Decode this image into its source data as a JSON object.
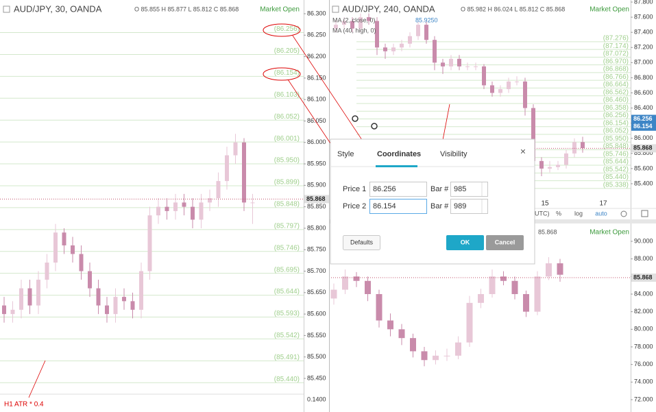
{
  "left_chart": {
    "symbol": "AUD/JPY, 30, OANDA",
    "ohlc": "O 85.855  H 85.877  L 85.812  C 85.868",
    "status": "Market Open",
    "ylim": [
      85.45,
      86.3
    ],
    "yticks": [
      {
        "value": 86.3,
        "label": "86.300"
      },
      {
        "value": 86.25,
        "label": "86.250"
      },
      {
        "value": 86.2,
        "label": "86.200"
      },
      {
        "value": 86.15,
        "label": "86.150"
      },
      {
        "value": 86.1,
        "label": "86.100"
      },
      {
        "value": 86.05,
        "label": "86.050"
      },
      {
        "value": 86.0,
        "label": "86.000"
      },
      {
        "value": 85.95,
        "label": "85.950"
      },
      {
        "value": 85.9,
        "label": "85.900"
      },
      {
        "value": 85.85,
        "label": "85.850"
      },
      {
        "value": 85.8,
        "label": "85.800"
      },
      {
        "value": 85.75,
        "label": "85.750"
      },
      {
        "value": 85.7,
        "label": "85.700"
      },
      {
        "value": 85.65,
        "label": "85.650"
      },
      {
        "value": 85.6,
        "label": "85.600"
      },
      {
        "value": 85.55,
        "label": "85.550"
      },
      {
        "value": 85.5,
        "label": "85.500"
      },
      {
        "value": 85.45,
        "label": "85.450"
      }
    ],
    "levels": [
      {
        "value": 86.256,
        "label": "(86.256)"
      },
      {
        "value": 86.205,
        "label": "(86.205)"
      },
      {
        "value": 86.154,
        "label": "(86.154)"
      },
      {
        "value": 86.103,
        "label": "(86.103)"
      },
      {
        "value": 86.052,
        "label": "(86.052)"
      },
      {
        "value": 86.001,
        "label": "(86.001)"
      },
      {
        "value": 85.95,
        "label": "(85.950)"
      },
      {
        "value": 85.899,
        "label": "(85.899)"
      },
      {
        "value": 85.848,
        "label": "(85.848)"
      },
      {
        "value": 85.797,
        "label": "(85.797)"
      },
      {
        "value": 85.746,
        "label": "(85.746)"
      },
      {
        "value": 85.695,
        "label": "(85.695)"
      },
      {
        "value": 85.644,
        "label": "(85.644)"
      },
      {
        "value": 85.593,
        "label": "(85.593)"
      },
      {
        "value": 85.542,
        "label": "(85.542)"
      },
      {
        "value": 85.491,
        "label": "(85.491)"
      },
      {
        "value": 85.44,
        "label": "(85.440)"
      }
    ],
    "price_labels": [
      {
        "value": 85.868,
        "label": "85.868",
        "color": "#e0e0e0"
      }
    ],
    "indicator": "H1 ATR * 0.4",
    "indicator_tick": "0.1400",
    "candles": [
      [
        85.62,
        85.64,
        85.58,
        85.6
      ],
      [
        85.6,
        85.63,
        85.58,
        85.61
      ],
      [
        85.61,
        85.68,
        85.59,
        85.66
      ],
      [
        85.66,
        85.68,
        85.6,
        85.62
      ],
      [
        85.62,
        85.7,
        85.6,
        85.68
      ],
      [
        85.68,
        85.74,
        85.66,
        85.72
      ],
      [
        85.72,
        85.81,
        85.7,
        85.79
      ],
      [
        85.79,
        85.8,
        85.74,
        85.76
      ],
      [
        85.76,
        85.78,
        85.72,
        85.74
      ],
      [
        85.74,
        85.76,
        85.68,
        85.7
      ],
      [
        85.7,
        85.72,
        85.64,
        85.66
      ],
      [
        85.66,
        85.68,
        85.6,
        85.62
      ],
      [
        85.62,
        85.64,
        85.58,
        85.6
      ],
      [
        85.6,
        85.66,
        85.58,
        85.64
      ],
      [
        85.64,
        85.66,
        85.61,
        85.63
      ],
      [
        85.63,
        85.65,
        85.59,
        85.61
      ],
      [
        85.61,
        85.72,
        85.59,
        85.7
      ],
      [
        85.7,
        85.85,
        85.68,
        85.83
      ],
      [
        85.83,
        85.87,
        85.81,
        85.85
      ],
      [
        85.85,
        85.87,
        85.82,
        85.84
      ],
      [
        85.84,
        85.88,
        85.82,
        85.86
      ],
      [
        85.86,
        85.88,
        85.83,
        85.85
      ],
      [
        85.85,
        85.87,
        85.8,
        85.82
      ],
      [
        85.82,
        85.88,
        85.8,
        85.86
      ],
      [
        85.86,
        85.89,
        85.84,
        85.87
      ],
      [
        85.87,
        85.93,
        85.85,
        85.91
      ],
      [
        85.91,
        85.99,
        85.89,
        85.97
      ],
      [
        85.97,
        86.02,
        85.95,
        86.0
      ],
      [
        86.0,
        86.01,
        85.84,
        85.86
      ],
      [
        85.86,
        85.88,
        85.81,
        85.86
      ]
    ]
  },
  "right_top_chart": {
    "symbol": "AUD/JPY, 240, OANDA",
    "ohlc": "O 85.982  H 86.024  L 85.812  C 85.868",
    "status": "Market Open",
    "ma1": "MA (2, close, 0)",
    "ma1_value": "85.9250",
    "ma2": "MA (40, high, 0)",
    "ylim": [
      85.4,
      87.8
    ],
    "yticks": [
      {
        "value": 87.8,
        "label": "87.800"
      },
      {
        "value": 87.6,
        "label": "87.600"
      },
      {
        "value": 87.4,
        "label": "87.400"
      },
      {
        "value": 87.2,
        "label": "87.200"
      },
      {
        "value": 87.0,
        "label": "87.000"
      },
      {
        "value": 86.8,
        "label": "86.800"
      },
      {
        "value": 86.6,
        "label": "86.600"
      },
      {
        "value": 86.4,
        "label": "86.400"
      },
      {
        "value": 86.2,
        "label": "86.200"
      },
      {
        "value": 86.0,
        "label": "86.000"
      },
      {
        "value": 85.8,
        "label": "85.800"
      },
      {
        "value": 85.6,
        "label": "85.600"
      },
      {
        "value": 85.4,
        "label": "85.400"
      }
    ],
    "levels": [
      {
        "value": 87.276,
        "label": "(87.276)"
      },
      {
        "value": 87.174,
        "label": "(87.174)"
      },
      {
        "value": 87.072,
        "label": "(87.072)"
      },
      {
        "value": 86.97,
        "label": "(86.970)"
      },
      {
        "value": 86.868,
        "label": "(86.868)"
      },
      {
        "value": 86.766,
        "label": "(86.766)"
      },
      {
        "value": 86.664,
        "label": "(86.664)"
      },
      {
        "value": 86.562,
        "label": "(86.562)"
      },
      {
        "value": 86.46,
        "label": "(86.460)"
      },
      {
        "value": 86.358,
        "label": "(86.358)"
      },
      {
        "value": 86.256,
        "label": "(86.256)"
      },
      {
        "value": 86.154,
        "label": "(86.154)"
      },
      {
        "value": 86.052,
        "label": "(86.052)"
      },
      {
        "value": 85.95,
        "label": "(85.950)"
      },
      {
        "value": 85.848,
        "label": "(85.848)"
      },
      {
        "value": 85.746,
        "label": "(85.746)"
      },
      {
        "value": 85.644,
        "label": "(85.644)"
      },
      {
        "value": 85.542,
        "label": "(85.542)"
      },
      {
        "value": 85.44,
        "label": "(85.440)"
      },
      {
        "value": 85.338,
        "label": "(85.338)"
      }
    ],
    "price_labels": [
      {
        "value": 86.256,
        "label": "86.256",
        "color": "#3d85c6"
      },
      {
        "value": 86.154,
        "label": "86.154",
        "color": "#3d85c6"
      },
      {
        "value": 85.868,
        "label": "85.868",
        "color": "#e0e0e0"
      }
    ],
    "x_labels": [
      "15",
      "17"
    ],
    "toolbar": [
      "UTC)",
      "%",
      "log",
      "auto"
    ],
    "candles": [
      [
        87.45,
        87.56,
        87.4,
        87.5
      ],
      [
        87.5,
        87.6,
        87.45,
        87.55
      ],
      [
        87.55,
        87.6,
        87.4,
        87.45
      ],
      [
        87.45,
        87.65,
        87.4,
        87.6
      ],
      [
        87.6,
        87.65,
        87.5,
        87.55
      ],
      [
        87.55,
        87.6,
        87.1,
        87.2
      ],
      [
        87.2,
        87.25,
        87.05,
        87.15
      ],
      [
        87.15,
        87.25,
        87.1,
        87.2
      ],
      [
        87.2,
        87.3,
        87.15,
        87.25
      ],
      [
        87.25,
        87.4,
        87.2,
        87.35
      ],
      [
        87.35,
        87.55,
        87.3,
        87.5
      ],
      [
        87.5,
        87.55,
        87.25,
        87.3
      ],
      [
        87.3,
        87.35,
        86.9,
        87.0
      ],
      [
        87.0,
        87.05,
        86.85,
        86.95
      ],
      [
        86.95,
        87.1,
        86.9,
        87.05
      ],
      [
        87.05,
        87.1,
        86.9,
        86.95
      ],
      [
        86.95,
        87.0,
        86.9,
        86.95
      ],
      [
        86.95,
        87.0,
        86.9,
        86.95
      ],
      [
        86.95,
        86.98,
        86.65,
        86.7
      ],
      [
        86.7,
        86.75,
        86.55,
        86.6
      ],
      [
        86.6,
        86.7,
        86.55,
        86.65
      ],
      [
        86.65,
        86.8,
        86.6,
        86.75
      ],
      [
        86.75,
        86.82,
        86.7,
        86.75
      ],
      [
        86.75,
        86.8,
        86.3,
        86.4
      ],
      [
        86.4,
        86.45,
        85.65,
        85.7
      ],
      [
        85.7,
        85.75,
        85.5,
        85.6
      ],
      [
        85.6,
        85.7,
        85.55,
        85.62
      ],
      [
        85.62,
        85.7,
        85.58,
        85.65
      ],
      [
        85.65,
        85.85,
        85.6,
        85.8
      ],
      [
        85.8,
        86.0,
        85.75,
        85.95
      ],
      [
        85.95,
        86.02,
        85.81,
        85.87
      ]
    ]
  },
  "right_bottom_chart": {
    "last_close": "85.868",
    "status": "Market Open",
    "ylim": [
      72,
      90
    ],
    "yticks": [
      {
        "value": 90,
        "label": "90.000"
      },
      {
        "value": 88,
        "label": "88.000"
      },
      {
        "value": 86,
        "label": "86.000"
      },
      {
        "value": 84,
        "label": "84.000"
      },
      {
        "value": 82,
        "label": "82.000"
      },
      {
        "value": 80,
        "label": "80.000"
      },
      {
        "value": 78,
        "label": "78.000"
      },
      {
        "value": 76,
        "label": "76.000"
      },
      {
        "value": 74,
        "label": "74.000"
      },
      {
        "value": 72,
        "label": "72.000"
      }
    ],
    "levels": [],
    "price_labels": [
      {
        "value": 85.868,
        "label": "85.868",
        "color": "#e0e0e0"
      }
    ],
    "candles": [
      [
        83.5,
        85.2,
        82.8,
        84.5
      ],
      [
        84.5,
        86.8,
        84.0,
        86.0
      ],
      [
        86.0,
        86.5,
        84.8,
        85.5
      ],
      [
        85.5,
        86.0,
        83.2,
        84.0
      ],
      [
        84.0,
        84.5,
        80.2,
        81.0
      ],
      [
        81.0,
        81.8,
        79.2,
        80.0
      ],
      [
        80.0,
        80.6,
        78.2,
        79.0
      ],
      [
        79.0,
        79.5,
        76.8,
        77.5
      ],
      [
        77.5,
        78.0,
        75.8,
        76.5
      ],
      [
        76.5,
        77.6,
        76.0,
        77.0
      ],
      [
        77.0,
        77.8,
        76.4,
        77.0
      ],
      [
        77.0,
        79.2,
        76.6,
        78.5
      ],
      [
        78.5,
        83.8,
        78.0,
        83.0
      ],
      [
        83.0,
        84.6,
        82.4,
        84.0
      ],
      [
        84.0,
        86.8,
        83.6,
        86.0
      ],
      [
        86.0,
        86.6,
        85.0,
        85.5
      ],
      [
        85.5,
        86.0,
        83.4,
        84.0
      ],
      [
        84.0,
        84.4,
        81.4,
        82.0
      ],
      [
        82.0,
        86.6,
        81.6,
        86.0
      ],
      [
        86.0,
        88.2,
        85.6,
        87.5
      ],
      [
        87.5,
        88.0,
        85.4,
        86.2
      ]
    ]
  },
  "dialog": {
    "tabs": [
      "Style",
      "Coordinates",
      "Visibility"
    ],
    "close": "×",
    "rows": [
      {
        "label": "Price 1",
        "price": "86.256",
        "bar_label": "Bar #",
        "bar": "985"
      },
      {
        "label": "Price 2",
        "price": "86.154",
        "bar_label": "Bar #",
        "bar": "989"
      }
    ],
    "buttons": [
      "Defaults",
      "OK",
      "Cancel"
    ]
  }
}
